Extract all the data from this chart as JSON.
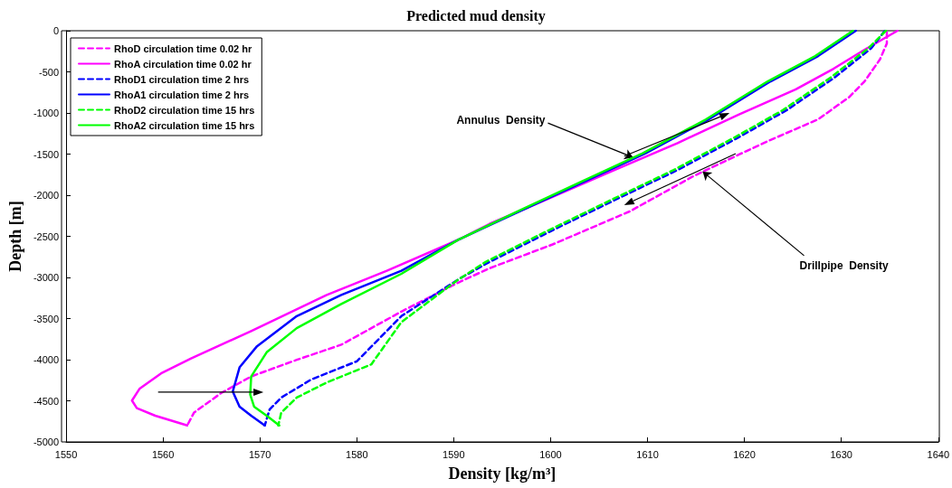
{
  "chart_data": {
    "type": "line",
    "title": "Predicted mud density",
    "xlabel": "Density [kg/m³]",
    "ylabel": "Depth [m]",
    "xlim": [
      1550,
      1640
    ],
    "xticks": [
      1550,
      1560,
      1570,
      1580,
      1590,
      1600,
      1610,
      1620,
      1630,
      1640
    ],
    "ylim": [
      -5000,
      0
    ],
    "yticks": [
      -5000,
      -4500,
      -4000,
      -3500,
      -3000,
      -2500,
      -2000,
      -1500,
      -1000,
      -500,
      0
    ],
    "grid": false,
    "legend": "top left",
    "marker": "none",
    "annotations": [
      {
        "text": "Annulus  Density",
        "x": 1608.5,
        "y": -1540
      },
      {
        "text": "Drillpipe  Density",
        "x": 1615.7,
        "y": -1713
      }
    ],
    "series": [
      {
        "name": "RhoD circulation time 0.02 hr",
        "color": "#ff00ff",
        "line_style": "dashed",
        "x": [
          1634.7,
          1634.7,
          1634,
          1632.4,
          1630.8,
          1627.6,
          1622.7,
          1619.5,
          1614.7,
          1608.2,
          1600.2,
          1593.7,
          1590.5,
          1584.6,
          1578.4,
          1573.8,
          1569.1,
          1566,
          1563.2,
          1562.5
        ],
        "values": [
          -19,
          -154,
          -347,
          -616,
          -808,
          -1078,
          -1328,
          -1502,
          -1771,
          -2195,
          -2599,
          -2888,
          -3061,
          -3415,
          -3818,
          -4002,
          -4204,
          -4406,
          -4644,
          -4800
        ]
      },
      {
        "name": "RhoA circulation time 0.02 hr",
        "color": "#ff00ff",
        "line_style": "solid",
        "x": [
          1635.8,
          1632.4,
          1629.2,
          1625.3,
          1619.4,
          1613.1,
          1606.6,
          1600.2,
          1593.7,
          1590.5,
          1583.1,
          1576.9,
          1569.1,
          1562.9,
          1559.8,
          1557.6,
          1556.8,
          1557.3,
          1559.2,
          1562.5
        ],
        "values": [
          0,
          -231,
          -462,
          -712,
          -1020,
          -1367,
          -1694,
          -2021,
          -2349,
          -2541,
          -2919,
          -3213,
          -3653,
          -3984,
          -4167,
          -4351,
          -4497,
          -4589,
          -4681,
          -4800
        ]
      },
      {
        "name": "RhoD1 circulation time 2 hrs",
        "color": "#0000ff",
        "line_style": "dashed",
        "x": [
          1634.5,
          1633.1,
          1629.2,
          1624.4,
          1619.5,
          1613.1,
          1606.6,
          1600.2,
          1593.7,
          1590.5,
          1584.6,
          1580,
          1575.3,
          1572.2,
          1571,
          1570.5
        ],
        "values": [
          0,
          -212,
          -578,
          -963,
          -1290,
          -1694,
          -2060,
          -2426,
          -2811,
          -3022,
          -3470,
          -4020,
          -4241,
          -4461,
          -4607,
          -4800
        ]
      },
      {
        "name": "RhoA1 circulation time 2 hrs",
        "color": "#0000ff",
        "line_style": "solid",
        "x": [
          1631.5,
          1627.6,
          1622.7,
          1616.3,
          1609.8,
          1603.4,
          1596.9,
          1590.5,
          1584.6,
          1578.4,
          1573.8,
          1569.7,
          1567.9,
          1567.2,
          1567.9,
          1569.1,
          1570.5
        ],
        "values": [
          0,
          -308,
          -616,
          -1080,
          -1490,
          -1840,
          -2190,
          -2540,
          -2919,
          -3213,
          -3470,
          -3837,
          -4094,
          -4387,
          -4571,
          -4681,
          -4800
        ]
      },
      {
        "name": "RhoD2 circulation time 15 hrs",
        "color": "#00ff00",
        "line_style": "dashed",
        "x": [
          1634.6,
          1632.8,
          1628.8,
          1624,
          1619.1,
          1612.7,
          1606.2,
          1599.8,
          1593.3,
          1590.3,
          1584.6,
          1581.5,
          1576.9,
          1573.8,
          1572.2,
          1571.9
        ],
        "values": [
          0,
          -212,
          -578,
          -963,
          -1290,
          -1694,
          -2060,
          -2426,
          -2811,
          -3040,
          -3543,
          -4057,
          -4277,
          -4461,
          -4644,
          -4800
        ]
      },
      {
        "name": "RhoA2 circulation time 15 hrs",
        "color": "#00ff00",
        "line_style": "solid",
        "x": [
          1631.2,
          1627.3,
          1622.4,
          1616,
          1609.5,
          1603.1,
          1596.7,
          1590.5,
          1584.6,
          1578.4,
          1573.8,
          1570.7,
          1569.1,
          1569,
          1569.4,
          1570.7,
          1572
        ],
        "values": [
          0,
          -308,
          -616,
          -1080,
          -1490,
          -1840,
          -2190,
          -2540,
          -2956,
          -3323,
          -3617,
          -3910,
          -4204,
          -4424,
          -4571,
          -4681,
          -4800
        ]
      }
    ]
  }
}
